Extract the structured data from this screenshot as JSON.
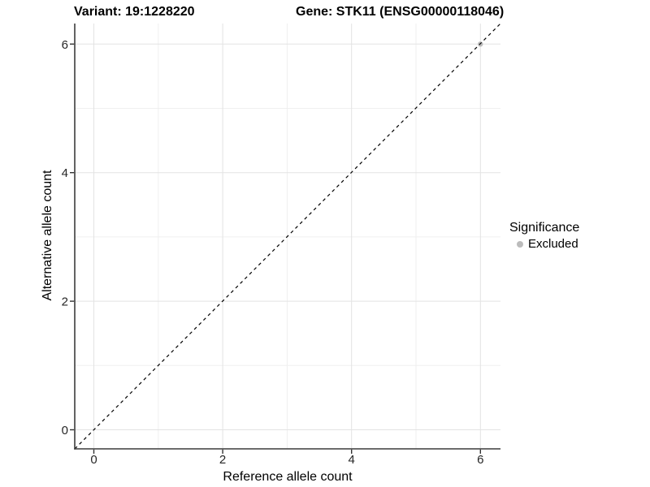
{
  "header": {
    "variant_title": "Variant: 19:1228220",
    "gene_title": "Gene: STK11 (ENSG00000118046)"
  },
  "chart_data": {
    "type": "scatter",
    "titles": [
      "Variant: 19:1228220",
      "Gene: STK11 (ENSG00000118046)"
    ],
    "xlabel": "Reference allele count",
    "ylabel": "Alternative allele count",
    "xlim": [
      -0.3,
      6.3
    ],
    "ylim": [
      -0.3,
      6.3
    ],
    "xticks": [
      0,
      2,
      4,
      6
    ],
    "yticks": [
      0,
      2,
      4,
      6
    ],
    "minor_xticks": [
      1,
      3,
      5
    ],
    "minor_yticks": [
      1,
      3,
      5
    ],
    "grid": "major+minor",
    "identity_line": {
      "slope": 1,
      "intercept": 0,
      "style": "dashed",
      "color": "#000000"
    },
    "series": [
      {
        "name": "Excluded",
        "color": "#bcbcbc",
        "marker": "circle",
        "points": [
          [
            6,
            6
          ]
        ]
      }
    ],
    "legend": {
      "title": "Significance",
      "position": "right",
      "entries": [
        {
          "label": "Excluded",
          "color": "#bcbcbc",
          "marker": "circle"
        }
      ]
    }
  },
  "colors": {
    "background": "#ffffff",
    "grid_major": "#e3e3e3",
    "grid_minor": "#efefef",
    "axis_line": "#3c3c3c",
    "tick_mark": "#333333",
    "tick_label": "#262626",
    "text": "#000000",
    "excluded_point": "#bcbcbc"
  }
}
